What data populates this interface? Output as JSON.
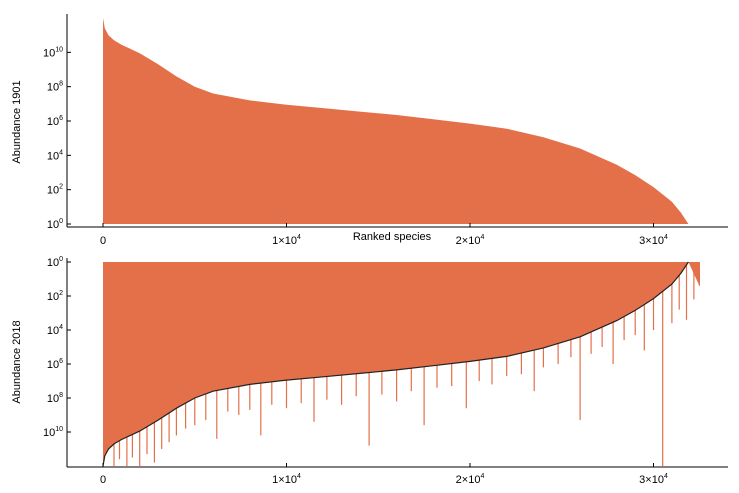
{
  "chart_data": [
    {
      "type": "area",
      "name_id": "top",
      "title": "",
      "ylabel": "Abundance 1901",
      "xlabel": "Ranked species",
      "xlim": [
        -20000,
        35000
      ],
      "ylim_log10": [
        0,
        12
      ],
      "y_scale": "log",
      "grid": false,
      "color": "#E4704A",
      "x_ticks": [
        {
          "value": 0,
          "label": "0"
        },
        {
          "value": 10000,
          "label": "1×10",
          "exp": "4"
        },
        {
          "value": 20000,
          "label": "2×10",
          "exp": "4"
        },
        {
          "value": 30000,
          "label": "3×10",
          "exp": "4"
        }
      ],
      "y_ticks": [
        {
          "log10": 0,
          "label": "10",
          "exp": "0"
        },
        {
          "log10": 2,
          "label": "10",
          "exp": "2"
        },
        {
          "log10": 4,
          "label": "10",
          "exp": "4"
        },
        {
          "log10": 6,
          "label": "10",
          "exp": "6"
        },
        {
          "log10": 8,
          "label": "10",
          "exp": "8"
        },
        {
          "log10": 10,
          "label": "10",
          "exp": "10"
        }
      ],
      "curve_log10": {
        "x": [
          0,
          100,
          300,
          600,
          1000,
          2000,
          3000,
          4000,
          5000,
          6000,
          8000,
          10000,
          12000,
          14000,
          16000,
          18000,
          20000,
          22000,
          24000,
          26000,
          28000,
          29000,
          30000,
          31000,
          31500,
          31900
        ],
        "y": [
          12.0,
          11.4,
          11.0,
          10.7,
          10.45,
          9.95,
          9.3,
          8.6,
          8.0,
          7.6,
          7.2,
          6.95,
          6.75,
          6.55,
          6.35,
          6.1,
          5.85,
          5.55,
          5.05,
          4.4,
          3.45,
          2.85,
          2.15,
          1.3,
          0.65,
          0.0
        ]
      }
    },
    {
      "type": "area",
      "name_id": "bottom",
      "title": "",
      "ylabel": "Abundance 2018",
      "xlabel": "",
      "xlim": [
        -20000,
        35000
      ],
      "ylim_log10": [
        12,
        0
      ],
      "y_scale": "log",
      "y_inverted": true,
      "grid": false,
      "color": "#E4704A",
      "line_color": "#222222",
      "x_ticks": [
        {
          "value": 0,
          "label": "0"
        },
        {
          "value": 10000,
          "label": "1×10",
          "exp": "4"
        },
        {
          "value": 20000,
          "label": "2×10",
          "exp": "4"
        },
        {
          "value": 30000,
          "label": "3×10",
          "exp": "4"
        }
      ],
      "y_ticks": [
        {
          "log10": 0,
          "label": "10",
          "exp": "0"
        },
        {
          "log10": 2,
          "label": "10",
          "exp": "2"
        },
        {
          "log10": 4,
          "label": "10",
          "exp": "4"
        },
        {
          "log10": 6,
          "label": "10",
          "exp": "6"
        },
        {
          "log10": 8,
          "label": "10",
          "exp": "8"
        },
        {
          "log10": 10,
          "label": "10",
          "exp": "10"
        }
      ],
      "fill_top_log10": 0,
      "fill_xmax": 32500,
      "curve_log10": {
        "x": [
          0,
          100,
          300,
          600,
          1000,
          2000,
          3000,
          4000,
          5000,
          6000,
          8000,
          10000,
          12000,
          14000,
          16000,
          18000,
          20000,
          22000,
          24000,
          26000,
          28000,
          29000,
          30000,
          31000,
          31500,
          31900
        ],
        "y": [
          12.0,
          11.4,
          11.0,
          10.7,
          10.45,
          9.95,
          9.3,
          8.6,
          8.0,
          7.6,
          7.2,
          6.95,
          6.75,
          6.55,
          6.35,
          6.1,
          5.85,
          5.55,
          5.05,
          4.4,
          3.45,
          2.85,
          2.15,
          1.3,
          0.65,
          0.0
        ]
      },
      "spikes_log10": [
        {
          "x": 600,
          "y": 12.0
        },
        {
          "x": 900,
          "y": 11.6
        },
        {
          "x": 1300,
          "y": 12.0
        },
        {
          "x": 1600,
          "y": 11.5
        },
        {
          "x": 2000,
          "y": 12.0
        },
        {
          "x": 2400,
          "y": 11.3
        },
        {
          "x": 2800,
          "y": 11.8
        },
        {
          "x": 3200,
          "y": 11.0
        },
        {
          "x": 3600,
          "y": 10.6
        },
        {
          "x": 4000,
          "y": 10.2
        },
        {
          "x": 4500,
          "y": 9.8
        },
        {
          "x": 5000,
          "y": 9.6
        },
        {
          "x": 5600,
          "y": 9.3
        },
        {
          "x": 6200,
          "y": 10.4
        },
        {
          "x": 6800,
          "y": 8.8
        },
        {
          "x": 7400,
          "y": 9.0
        },
        {
          "x": 8000,
          "y": 8.7
        },
        {
          "x": 8600,
          "y": 10.2
        },
        {
          "x": 9200,
          "y": 8.4
        },
        {
          "x": 10000,
          "y": 8.6
        },
        {
          "x": 10800,
          "y": 8.3
        },
        {
          "x": 11500,
          "y": 9.4
        },
        {
          "x": 12200,
          "y": 8.1
        },
        {
          "x": 13000,
          "y": 8.4
        },
        {
          "x": 13800,
          "y": 7.9
        },
        {
          "x": 14500,
          "y": 10.8
        },
        {
          "x": 15200,
          "y": 7.8
        },
        {
          "x": 16000,
          "y": 8.2
        },
        {
          "x": 16800,
          "y": 7.6
        },
        {
          "x": 17500,
          "y": 9.6
        },
        {
          "x": 18200,
          "y": 7.4
        },
        {
          "x": 19000,
          "y": 7.3
        },
        {
          "x": 19800,
          "y": 8.6
        },
        {
          "x": 20500,
          "y": 7.0
        },
        {
          "x": 21200,
          "y": 7.2
        },
        {
          "x": 22000,
          "y": 6.7
        },
        {
          "x": 22800,
          "y": 6.6
        },
        {
          "x": 23500,
          "y": 7.6
        },
        {
          "x": 24000,
          "y": 6.2
        },
        {
          "x": 24800,
          "y": 6.0
        },
        {
          "x": 25500,
          "y": 5.6
        },
        {
          "x": 26000,
          "y": 9.3
        },
        {
          "x": 26600,
          "y": 5.4
        },
        {
          "x": 27200,
          "y": 5.0
        },
        {
          "x": 27800,
          "y": 6.0
        },
        {
          "x": 28400,
          "y": 4.6
        },
        {
          "x": 29000,
          "y": 4.3
        },
        {
          "x": 29500,
          "y": 5.2
        },
        {
          "x": 30000,
          "y": 4.0
        },
        {
          "x": 30500,
          "y": 12.0
        },
        {
          "x": 31000,
          "y": 3.6
        },
        {
          "x": 31400,
          "y": 2.8
        },
        {
          "x": 31800,
          "y": 3.4
        },
        {
          "x": 32200,
          "y": 2.2
        },
        {
          "x": 32500,
          "y": 1.4
        }
      ]
    }
  ]
}
